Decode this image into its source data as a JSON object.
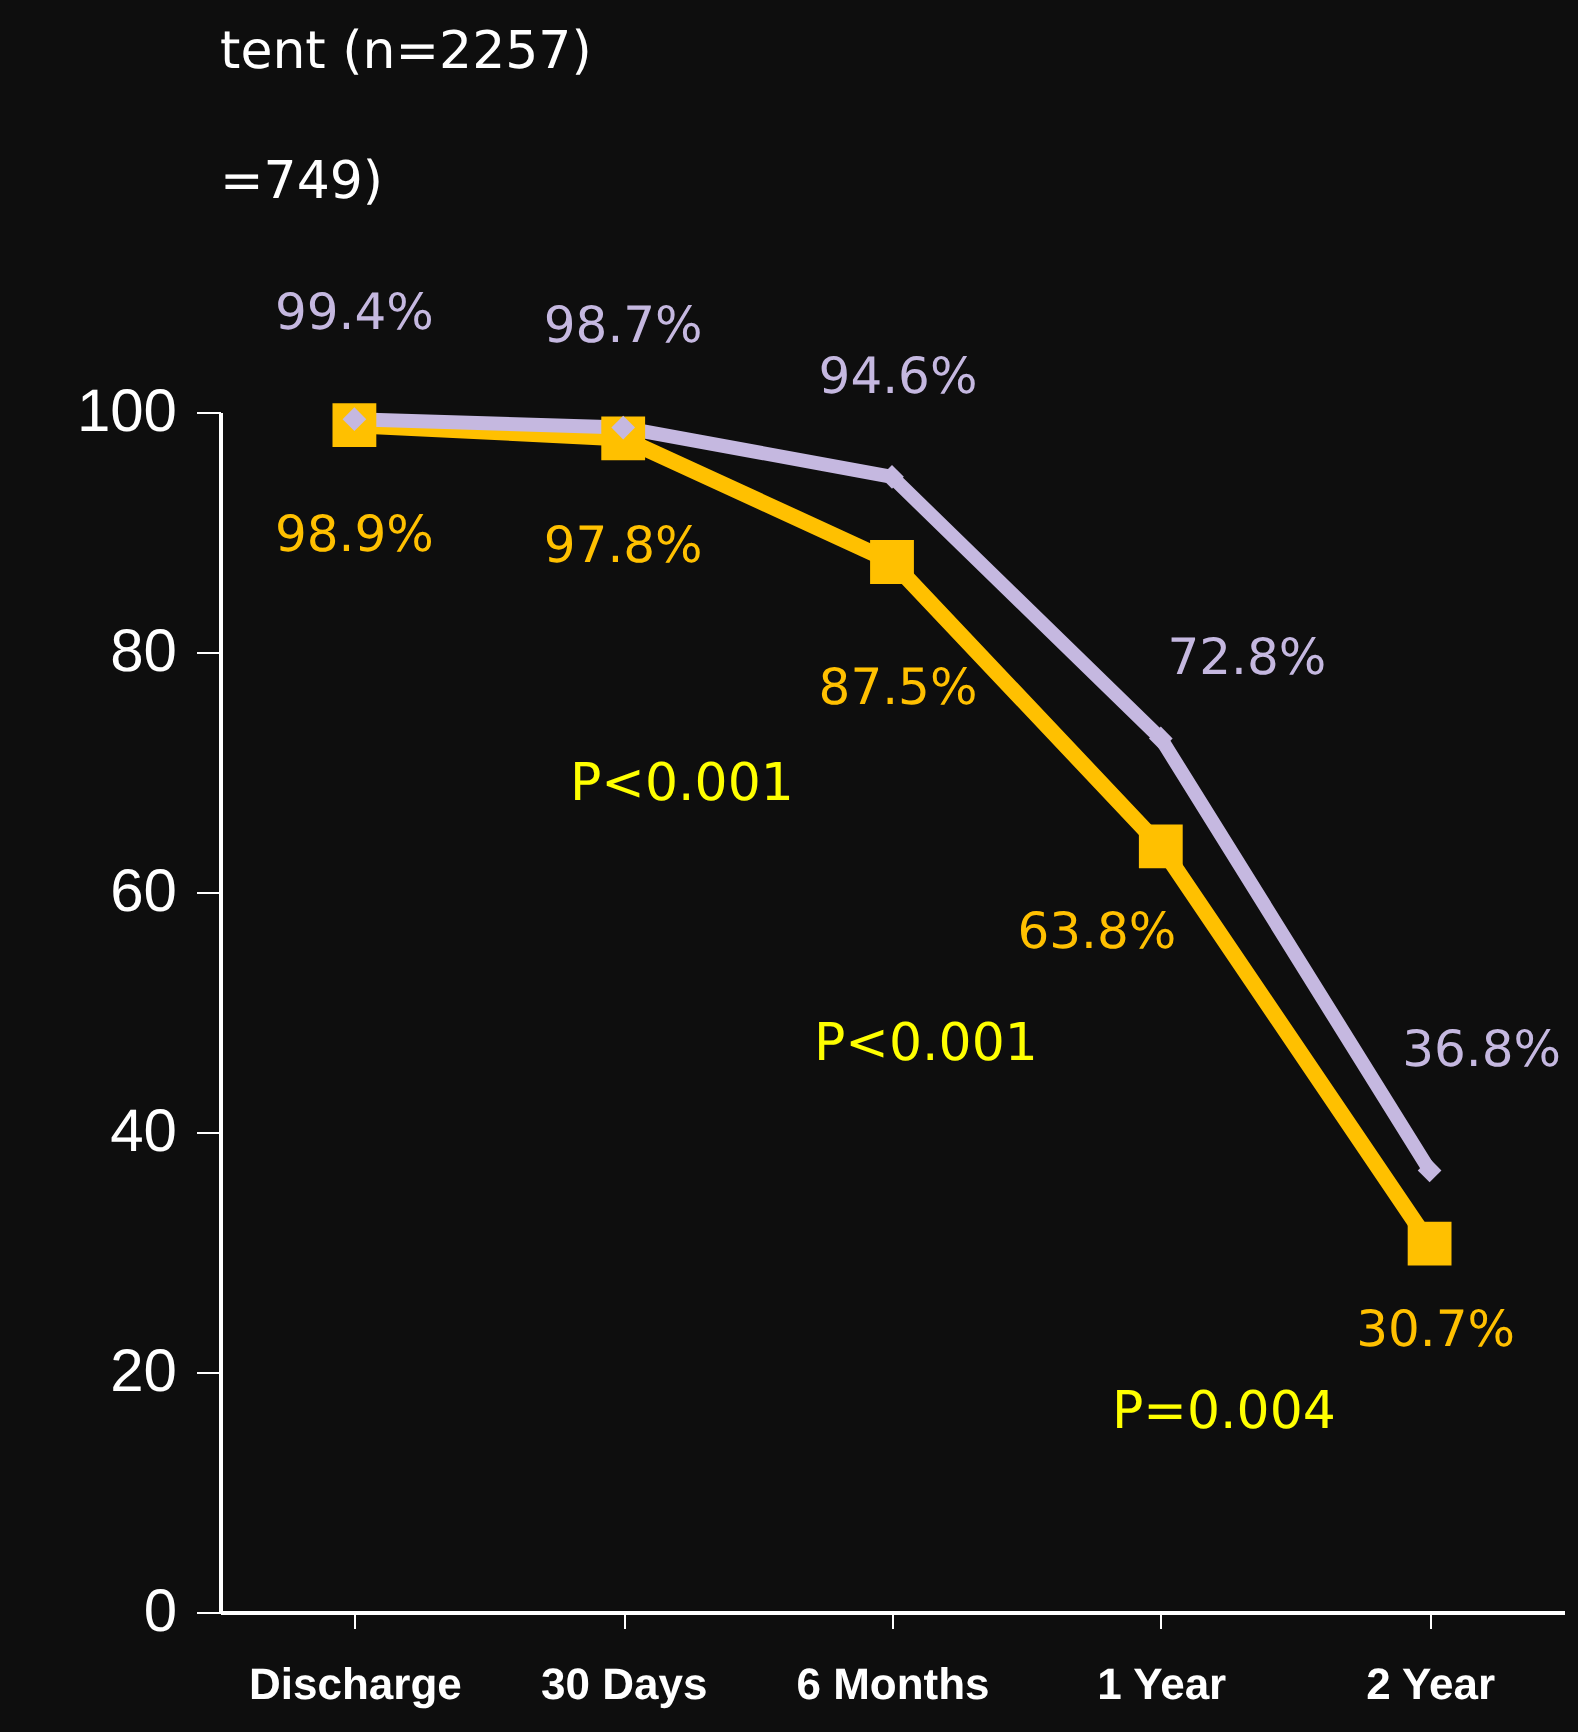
{
  "chart_data": {
    "type": "line",
    "categories": [
      "Discharge",
      "30 Days",
      "6 Months",
      "1 Year",
      "2 Year"
    ],
    "series": [
      {
        "color": "#c5b8e0",
        "marker": "diamond",
        "values": [
          99.4,
          98.7,
          94.6,
          72.8,
          36.8
        ],
        "value_labels": [
          "99.4%",
          "98.7%",
          "94.6%",
          "72.8%",
          "36.8%"
        ]
      },
      {
        "color": "#ffc000",
        "marker": "square",
        "values": [
          98.9,
          97.8,
          87.5,
          63.8,
          30.7
        ],
        "value_labels": [
          "98.9%",
          "97.8%",
          "87.5%",
          "63.8%",
          "30.7%"
        ]
      }
    ],
    "ylim": [
      0,
      100
    ],
    "yticks": [
      0,
      20,
      40,
      60,
      80,
      100
    ],
    "grid": false,
    "annotations": [
      "tent (n=2257)",
      "=749)",
      "P<0.001",
      "P<0.001",
      "P=0.004"
    ]
  }
}
